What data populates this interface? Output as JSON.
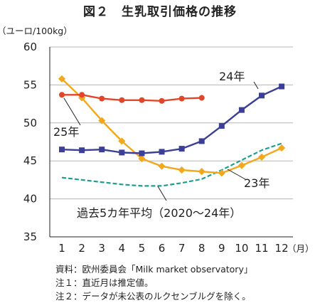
{
  "title": "図２　生乳取引価格の推移",
  "chart_data": {
    "type": "line",
    "ylabel": "（ユーロ/100kg）",
    "xlabel": "（月）",
    "ylim": [
      35,
      60
    ],
    "yticks": [
      35,
      40,
      45,
      50,
      55,
      60
    ],
    "x": [
      1,
      2,
      3,
      4,
      5,
      6,
      7,
      8,
      9,
      10,
      11,
      12
    ],
    "grid": "horizontal",
    "series": [
      {
        "name": "24年",
        "style": "solid-square",
        "color": "#3b3f96",
        "values": [
          46.5,
          46.4,
          46.5,
          46.1,
          46.0,
          46.2,
          46.6,
          47.6,
          49.6,
          51.7,
          53.6,
          54.8
        ],
        "label": "24年"
      },
      {
        "name": "23年",
        "style": "solid-diamond",
        "color": "#f2a81d",
        "values": [
          55.8,
          53.3,
          50.3,
          47.6,
          45.3,
          44.3,
          43.8,
          43.6,
          43.4,
          44.4,
          45.5,
          46.7
        ],
        "label": "23年"
      },
      {
        "name": "25年",
        "style": "solid-circle",
        "color": "#e0462a",
        "values": [
          53.7,
          53.7,
          53.2,
          53.0,
          53.0,
          52.9,
          53.2,
          53.3,
          null,
          null,
          null,
          null
        ],
        "label": "25年"
      },
      {
        "name": "過去5カ年平均（2020～24年）",
        "style": "dashed",
        "color": "#1f9e8f",
        "values": [
          42.8,
          42.5,
          42.2,
          41.9,
          41.7,
          41.7,
          42.1,
          42.6,
          43.8,
          45.1,
          46.4,
          47.3
        ],
        "label": "過去5カ年平均（2020～24年）"
      }
    ]
  },
  "notes": [
    "資料：欧州委員会「Milk market observatory」",
    "注１：直近月は推定値。",
    "注２：データが未公表のルクセンブルグを除く。"
  ]
}
